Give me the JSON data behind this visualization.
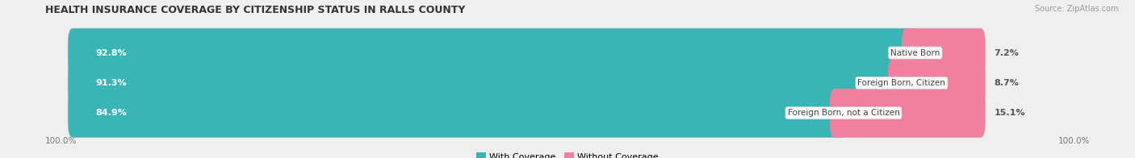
{
  "title": "HEALTH INSURANCE COVERAGE BY CITIZENSHIP STATUS IN RALLS COUNTY",
  "source": "Source: ZipAtlas.com",
  "categories": [
    "Native Born",
    "Foreign Born, Citizen",
    "Foreign Born, not a Citizen"
  ],
  "with_coverage": [
    92.8,
    91.3,
    84.9
  ],
  "without_coverage": [
    7.2,
    8.7,
    15.1
  ],
  "color_with": "#3ab5b5",
  "color_without": "#f07fa0",
  "color_with_light": "#a8dede",
  "label_with": "With Coverage",
  "label_without": "Without Coverage",
  "bg_color": "#efefef",
  "bar_bg": "#ffffff",
  "title_fontsize": 9,
  "source_fontsize": 7,
  "bar_label_fontsize": 8,
  "cat_label_fontsize": 7.5,
  "axis_label_fontsize": 7.5,
  "legend_fontsize": 8,
  "axis_left_label": "100.0%",
  "axis_right_label": "100.0%"
}
